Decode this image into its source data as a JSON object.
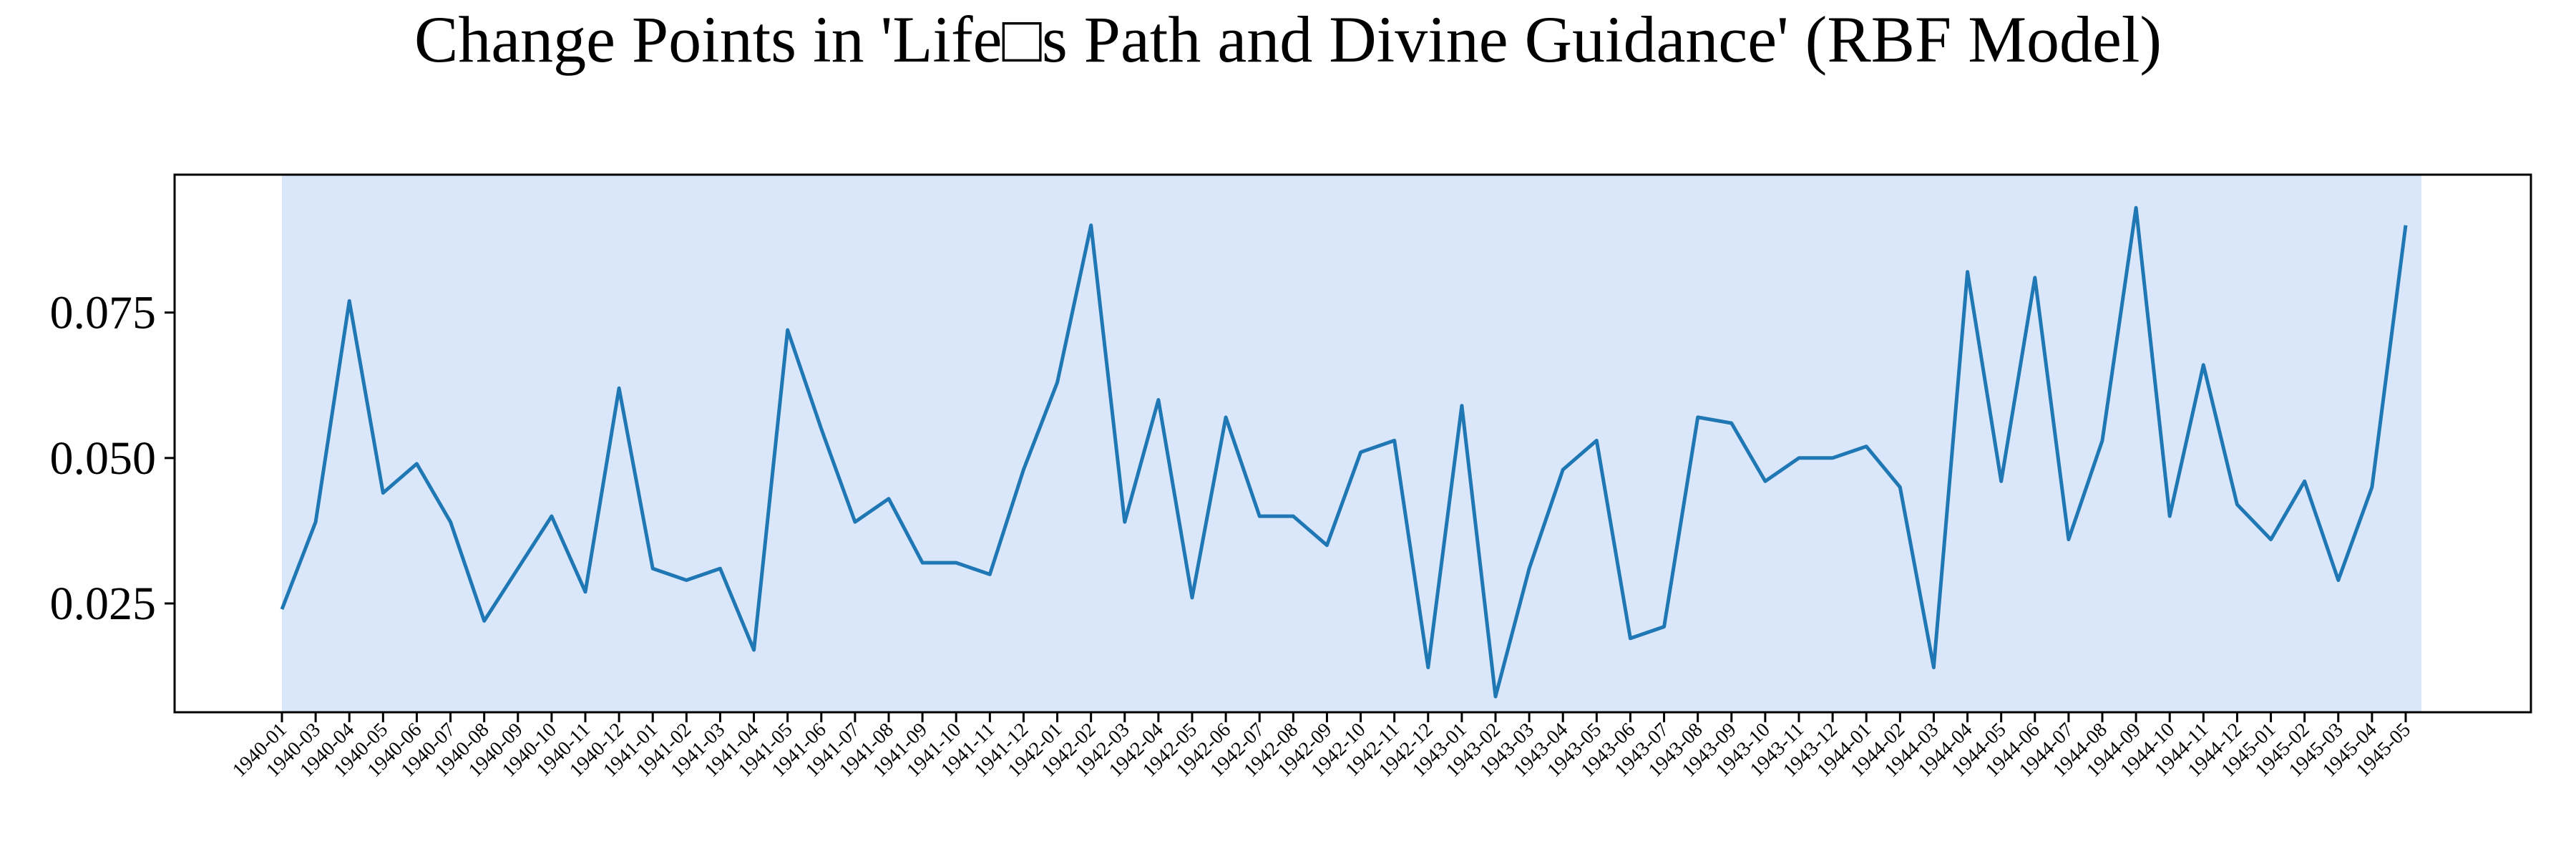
{
  "chart_data": {
    "type": "line",
    "title": "Change Points in 'Life□s Path and Divine Guidance' (RBF Model)",
    "xlabel": "",
    "ylabel": "",
    "x": [
      "1940-01",
      "1940-03",
      "1940-04",
      "1940-05",
      "1940-06",
      "1940-07",
      "1940-08",
      "1940-09",
      "1940-10",
      "1940-11",
      "1940-12",
      "1941-01",
      "1941-02",
      "1941-03",
      "1941-04",
      "1941-05",
      "1941-06",
      "1941-07",
      "1941-08",
      "1941-09",
      "1941-10",
      "1941-11",
      "1941-12",
      "1942-01",
      "1942-02",
      "1942-03",
      "1942-04",
      "1942-05",
      "1942-06",
      "1942-07",
      "1942-08",
      "1942-09",
      "1942-10",
      "1942-11",
      "1942-12",
      "1943-01",
      "1943-02",
      "1943-03",
      "1943-04",
      "1943-05",
      "1943-06",
      "1943-07",
      "1943-08",
      "1943-09",
      "1943-10",
      "1943-11",
      "1943-12",
      "1944-01",
      "1944-02",
      "1944-03",
      "1944-04",
      "1944-05",
      "1944-06",
      "1944-07",
      "1944-08",
      "1944-09",
      "1944-10",
      "1944-11",
      "1944-12",
      "1945-01",
      "1945-02",
      "1945-03",
      "1945-04",
      "1945-05"
    ],
    "series": [
      {
        "values": [
          0.024,
          0.039,
          0.077,
          0.044,
          0.049,
          0.039,
          0.022,
          0.031,
          0.04,
          0.027,
          0.062,
          0.031,
          0.029,
          0.031,
          0.017,
          0.072,
          0.055,
          0.039,
          0.043,
          0.032,
          0.032,
          0.03,
          0.048,
          0.063,
          0.09,
          0.039,
          0.06,
          0.026,
          0.057,
          0.04,
          0.04,
          0.035,
          0.051,
          0.053,
          0.014,
          0.059,
          0.009,
          0.031,
          0.048,
          0.053,
          0.019,
          0.021,
          0.057,
          0.056,
          0.046,
          0.05,
          0.05,
          0.052,
          0.045,
          0.014,
          0.082,
          0.046,
          0.081,
          0.036,
          0.053,
          0.093,
          0.04,
          0.066,
          0.042,
          0.036,
          0.046,
          0.029,
          0.045,
          0.09
        ]
      }
    ],
    "yticks": [
      "0.025",
      "0.050",
      "0.075"
    ],
    "ylim": [
      0.0063,
      0.0987
    ],
    "grid": false,
    "highlight_span": [
      "1940-01",
      "1945-05"
    ],
    "colors": {
      "line": "#1f77b4",
      "span": "#dae6fa",
      "axes": "#000000"
    }
  }
}
